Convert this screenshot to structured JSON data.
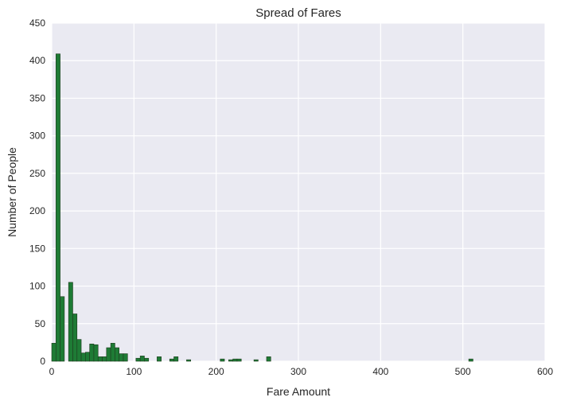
{
  "chart_data": {
    "type": "bar",
    "subtype": "histogram",
    "title": "Spread of Fares",
    "xlabel": "Fare Amount",
    "ylabel": "Number of People",
    "xlim": [
      0,
      600
    ],
    "ylim": [
      0,
      450
    ],
    "xticks": [
      0,
      100,
      200,
      300,
      400,
      500,
      600
    ],
    "yticks": [
      0,
      50,
      100,
      150,
      200,
      250,
      300,
      350,
      400,
      450
    ],
    "grid": true,
    "legend": "none",
    "bin_width": 5.12,
    "bins": [
      {
        "x0": 0.0,
        "x1": 5.12,
        "count": 24
      },
      {
        "x0": 5.12,
        "x1": 10.25,
        "count": 409
      },
      {
        "x0": 10.25,
        "x1": 15.37,
        "count": 86
      },
      {
        "x0": 15.37,
        "x1": 20.49,
        "count": 0
      },
      {
        "x0": 20.49,
        "x1": 25.62,
        "count": 105
      },
      {
        "x0": 25.62,
        "x1": 30.74,
        "count": 63
      },
      {
        "x0": 30.74,
        "x1": 35.86,
        "count": 29
      },
      {
        "x0": 35.86,
        "x1": 40.99,
        "count": 11
      },
      {
        "x0": 40.99,
        "x1": 46.11,
        "count": 12
      },
      {
        "x0": 46.11,
        "x1": 51.23,
        "count": 23
      },
      {
        "x0": 51.23,
        "x1": 56.36,
        "count": 22
      },
      {
        "x0": 56.36,
        "x1": 61.48,
        "count": 6
      },
      {
        "x0": 61.48,
        "x1": 66.6,
        "count": 6
      },
      {
        "x0": 66.6,
        "x1": 71.73,
        "count": 18
      },
      {
        "x0": 71.73,
        "x1": 76.85,
        "count": 24
      },
      {
        "x0": 76.85,
        "x1": 81.97,
        "count": 18
      },
      {
        "x0": 81.97,
        "x1": 87.1,
        "count": 10
      },
      {
        "x0": 87.1,
        "x1": 92.22,
        "count": 10
      },
      {
        "x0": 92.22,
        "x1": 97.34,
        "count": 0
      },
      {
        "x0": 97.34,
        "x1": 102.47,
        "count": 0
      },
      {
        "x0": 102.47,
        "x1": 107.59,
        "count": 4
      },
      {
        "x0": 107.59,
        "x1": 112.71,
        "count": 7
      },
      {
        "x0": 112.71,
        "x1": 117.84,
        "count": 4
      },
      {
        "x0": 117.84,
        "x1": 122.96,
        "count": 0
      },
      {
        "x0": 122.96,
        "x1": 128.08,
        "count": 0
      },
      {
        "x0": 128.08,
        "x1": 133.21,
        "count": 6
      },
      {
        "x0": 133.21,
        "x1": 138.33,
        "count": 0
      },
      {
        "x0": 138.33,
        "x1": 143.45,
        "count": 0
      },
      {
        "x0": 143.45,
        "x1": 148.58,
        "count": 3
      },
      {
        "x0": 148.58,
        "x1": 153.7,
        "count": 6
      },
      {
        "x0": 153.7,
        "x1": 158.82,
        "count": 0
      },
      {
        "x0": 158.82,
        "x1": 163.95,
        "count": 0
      },
      {
        "x0": 163.95,
        "x1": 169.07,
        "count": 2
      },
      {
        "x0": 204.93,
        "x1": 210.05,
        "count": 3
      },
      {
        "x0": 215.17,
        "x1": 220.3,
        "count": 2
      },
      {
        "x0": 220.3,
        "x1": 225.42,
        "count": 3
      },
      {
        "x0": 225.42,
        "x1": 230.54,
        "count": 3
      },
      {
        "x0": 245.91,
        "x1": 251.03,
        "count": 2
      },
      {
        "x0": 261.28,
        "x1": 266.41,
        "count": 6
      },
      {
        "x0": 507.19,
        "x1": 512.33,
        "count": 3
      }
    ],
    "colors": {
      "background": "#eaeaf2",
      "grid": "#ffffff",
      "bar_fill": "#1e7b35",
      "bar_edge": "#1f3b1f",
      "text": "#262626"
    }
  }
}
